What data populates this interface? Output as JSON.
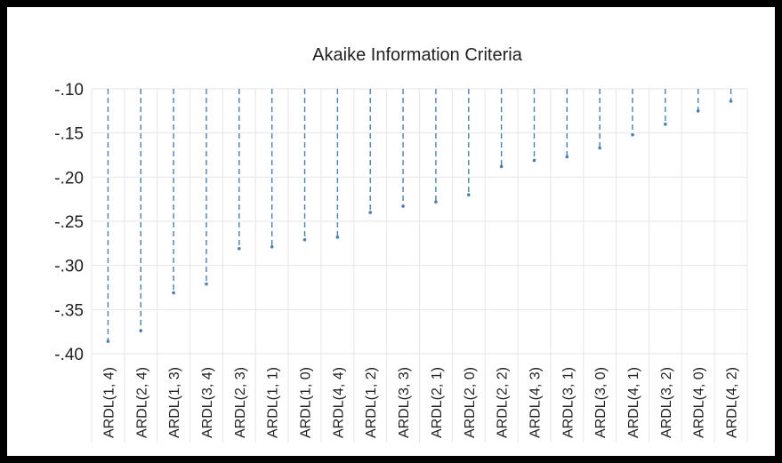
{
  "chart_data": {
    "type": "bar",
    "title": "Akaike Information Criteria",
    "xlabel": "",
    "ylabel": "",
    "ylim": [
      -0.4,
      -0.1
    ],
    "yticks": [
      -0.1,
      -0.15,
      -0.2,
      -0.25,
      -0.3,
      -0.35,
      -0.4
    ],
    "ytick_labels": [
      "-.10",
      "-.15",
      "-.20",
      "-.25",
      "-.30",
      "-.35",
      "-.40"
    ],
    "grid": true,
    "orientation": "downward-from-top",
    "categories": [
      "ARDL(1, 4)",
      "ARDL(2, 4)",
      "ARDL(1, 3)",
      "ARDL(3, 4)",
      "ARDL(2, 3)",
      "ARDL(1, 1)",
      "ARDL(1, 0)",
      "ARDL(4, 4)",
      "ARDL(1, 2)",
      "ARDL(3, 3)",
      "ARDL(2, 1)",
      "ARDL(2, 0)",
      "ARDL(2, 2)",
      "ARDL(4, 3)",
      "ARDL(3, 1)",
      "ARDL(3, 0)",
      "ARDL(4, 1)",
      "ARDL(3, 2)",
      "ARDL(4, 0)",
      "ARDL(4, 2)"
    ],
    "values": [
      -0.386,
      -0.374,
      -0.331,
      -0.321,
      -0.281,
      -0.279,
      -0.271,
      -0.268,
      -0.24,
      -0.233,
      -0.228,
      -0.22,
      -0.188,
      -0.181,
      -0.177,
      -0.167,
      -0.152,
      -0.14,
      -0.125,
      -0.114
    ],
    "colors": {
      "stem": "#4a7fb0",
      "grid": "#e6e6e6",
      "text": "#222222",
      "axis": "#d9d9d9"
    }
  }
}
